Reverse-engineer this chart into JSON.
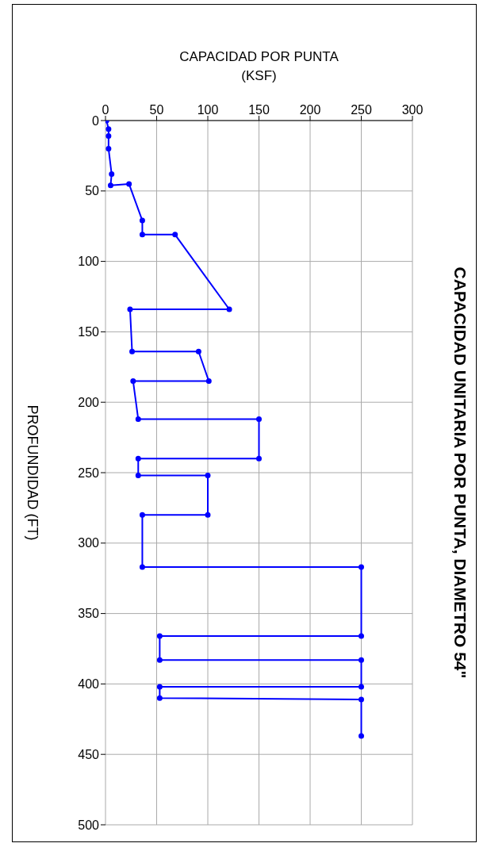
{
  "chart_data": {
    "type": "line",
    "title": "CAPACIDAD UNITARIA POR PUNTA, DIAMETRO 54\"",
    "xlabel": "CAPACIDAD POR PUNTA\n(KSF)",
    "ylabel": "PROFUNDIDAD (FT)",
    "x": [
      1,
      3,
      3,
      3,
      6,
      5,
      23,
      36,
      36,
      68,
      121,
      24,
      26,
      91,
      101,
      27,
      32,
      150,
      150,
      32,
      32,
      100,
      100,
      36,
      36,
      250,
      250,
      53,
      53,
      250,
      250,
      53,
      53,
      250,
      250
    ],
    "values": [
      0,
      6,
      11,
      20,
      38,
      46,
      45,
      71,
      81,
      81,
      134,
      134,
      164,
      164,
      185,
      185,
      212,
      212,
      240,
      240,
      252,
      252,
      280,
      280,
      317,
      317,
      366,
      366,
      383,
      383,
      402,
      402,
      410,
      411,
      437
    ],
    "color": "#0000ff",
    "marker": "circle",
    "line_style": "solid",
    "xlim": [
      0,
      300
    ],
    "xticks": [
      0,
      50,
      100,
      150,
      200,
      250,
      300
    ],
    "ylim": [
      500,
      0
    ],
    "yticks": [
      0,
      50,
      100,
      150,
      200,
      250,
      300,
      350,
      400,
      450,
      500
    ],
    "grid": true
  }
}
